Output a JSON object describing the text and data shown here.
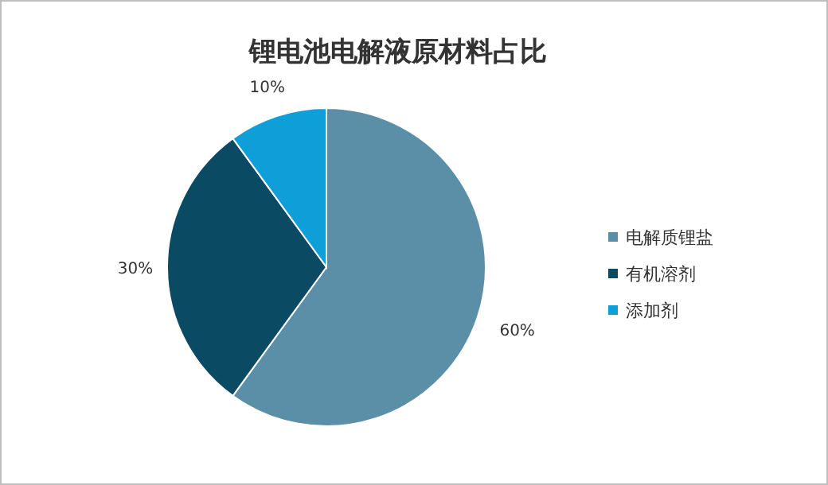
{
  "chart_data": {
    "type": "pie",
    "title": "锂电池电解液原材料占比",
    "categories": [
      "电解质锂盐",
      "有机溶剂",
      "添加剂"
    ],
    "values": [
      60,
      30,
      10
    ],
    "value_labels": [
      "60%",
      "30%",
      "10%"
    ],
    "colors": [
      "#5b8fa8",
      "#0b4a63",
      "#0e9fd8"
    ],
    "legend": "right"
  }
}
